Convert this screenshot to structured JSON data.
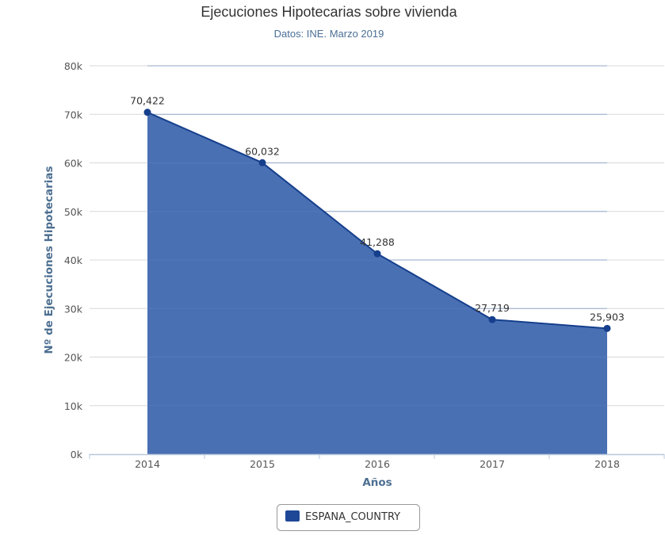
{
  "chart_data": {
    "type": "area",
    "title": "Ejecuciones Hipotecarias sobre vivienda",
    "subtitle": "Datos: INE. Marzo 2019",
    "xlabel": "Años",
    "ylabel": "Nº de Ejecuciones Hipotecarias",
    "categories": [
      "2014",
      "2015",
      "2016",
      "2017",
      "2018"
    ],
    "ylim": [
      0,
      80000
    ],
    "yticks": [
      0,
      10000,
      20000,
      30000,
      40000,
      50000,
      60000,
      70000,
      80000
    ],
    "ytick_labels": [
      "0k",
      "10k",
      "20k",
      "30k",
      "40k",
      "50k",
      "60k",
      "70k",
      "80k"
    ],
    "grid": true,
    "legend_position": "bottom-center",
    "series": [
      {
        "name": "ESPANA_COUNTRY",
        "values": [
          70422,
          60032,
          41288,
          27719,
          25903
        ],
        "labels": [
          "70,422",
          "60,032",
          "41,288",
          "27,719",
          "25,903"
        ],
        "fill_color": "#4a70b4",
        "line_color": "#153f8c"
      }
    ]
  }
}
